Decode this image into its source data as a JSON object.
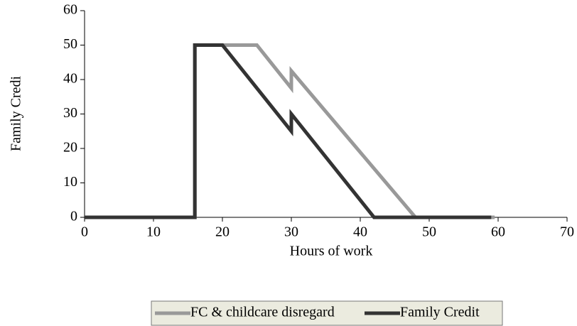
{
  "chart_data": {
    "type": "line",
    "xlabel": "Hours of work",
    "ylabel": "Family Credi",
    "xlim": [
      0,
      70
    ],
    "xticks": [
      0,
      10,
      20,
      30,
      40,
      50,
      60,
      70
    ],
    "ylim": [
      0,
      60
    ],
    "yticks": [
      0,
      10,
      20,
      30,
      40,
      50,
      60
    ],
    "grid": false,
    "legend": "bottom",
    "series": [
      {
        "name": "FC & childcare disregard",
        "color": "#999999",
        "x": [
          0,
          16,
          16,
          25,
          30,
          30,
          48,
          59.5
        ],
        "values": [
          0,
          0,
          50,
          50,
          37.5,
          42.5,
          0,
          0
        ]
      },
      {
        "name": "Family Credit",
        "color": "#333333",
        "x": [
          0,
          16,
          16,
          20,
          30,
          30,
          42,
          59
        ],
        "values": [
          0,
          0,
          50,
          50,
          25,
          30,
          0,
          0
        ]
      }
    ]
  }
}
